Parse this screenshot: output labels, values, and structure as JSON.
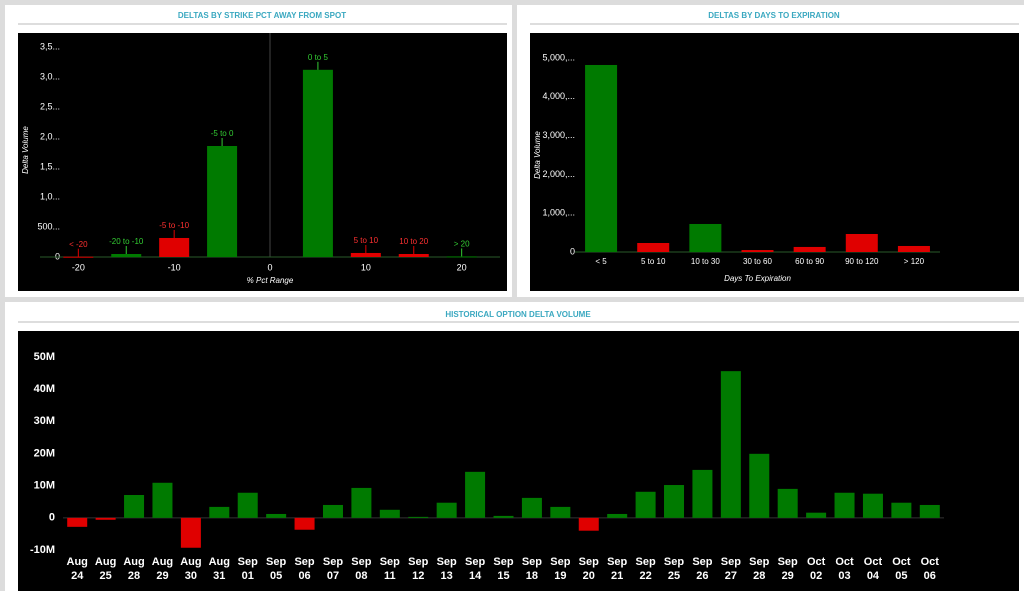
{
  "chart_data": [
    {
      "type": "bar",
      "title": "DELTAS BY STRIKE PCT AWAY FROM SPOT",
      "x_label": "% Pct Range",
      "y_label": "Delta Volume",
      "categories": [
        "< -20",
        "-20 to -10",
        "-5 to -10",
        "-5 to 0",
        "0 to 5",
        "5 to 10",
        "10 to 20",
        "> 20"
      ],
      "x": [
        -20,
        -15,
        -10,
        -5,
        5,
        10,
        15,
        20
      ],
      "values": [
        5000,
        50000,
        317000,
        1850000,
        3120000,
        67000,
        50000,
        10000
      ],
      "colors": [
        "#e00000",
        "#007a00",
        "#e00000",
        "#007a00",
        "#007a00",
        "#e00000",
        "#e00000",
        "#007a00"
      ],
      "xlim": [
        -24,
        24
      ],
      "xticks": [
        -20,
        -10,
        0,
        10,
        20
      ],
      "ylim": [
        0,
        3500000
      ],
      "yticks": [
        0,
        {
          "value": 500000,
          "label": "500..."
        },
        {
          "value": 1000000,
          "label": "1,0..."
        },
        {
          "value": 1500000,
          "label": "1,5..."
        },
        {
          "value": 2000000,
          "label": "2,0..."
        },
        {
          "value": 2500000,
          "label": "2,5..."
        },
        {
          "value": 3000000,
          "label": "3,0..."
        },
        {
          "value": 3500000,
          "label": "3,5..."
        }
      ]
    },
    {
      "type": "bar",
      "title": "DELTAS BY DAYS TO EXPIRATION",
      "x_label": "Days To Expiration",
      "y_label": "Delta Volume",
      "categories": [
        "< 5",
        "5 to 10",
        "10 to 30",
        "30 to 60",
        "60 to 90",
        "90 to 120",
        "> 120"
      ],
      "values": [
        4820000,
        232000,
        722000,
        50000,
        130000,
        464000,
        155000
      ],
      "colors": [
        "#007a00",
        "#e00000",
        "#007a00",
        "#e00000",
        "#e00000",
        "#e00000",
        "#e00000"
      ],
      "ylim": [
        0,
        5000000
      ],
      "yticks": [
        0,
        {
          "value": 1000000,
          "label": "1,000,..."
        },
        {
          "value": 2000000,
          "label": "2,000,..."
        },
        {
          "value": 3000000,
          "label": "3,000,..."
        },
        {
          "value": 4000000,
          "label": "4,000,..."
        },
        {
          "value": 5000000,
          "label": "5,000,..."
        }
      ]
    },
    {
      "type": "bar",
      "title": "HISTORICAL OPTION DELTA VOLUME",
      "categories": [
        "Aug 24",
        "Aug 25",
        "Aug 28",
        "Aug 29",
        "Aug 30",
        "Aug 31",
        "Sep 01",
        "Sep 05",
        "Sep 06",
        "Sep 07",
        "Sep 08",
        "Sep 11",
        "Sep 12",
        "Sep 13",
        "Sep 14",
        "Sep 15",
        "Sep 18",
        "Sep 19",
        "Sep 20",
        "Sep 21",
        "Sep 22",
        "Sep 25",
        "Sep 26",
        "Sep 27",
        "Sep 28",
        "Sep 29",
        "Oct 02",
        "Oct 03",
        "Oct 04",
        "Oct 05",
        "Oct 06"
      ],
      "values": [
        -2800000,
        -600000,
        7100000,
        10900000,
        -9300000,
        3400000,
        7800000,
        1200000,
        -3700000,
        4000000,
        9300000,
        2500000,
        300000,
        4700000,
        14300000,
        600000,
        6200000,
        3400000,
        -4000000,
        1200000,
        8100000,
        10200000,
        14900000,
        45600000,
        19900000,
        9000000,
        1600000,
        7800000,
        7500000,
        4700000,
        4000000
      ],
      "colors": [
        "#e00000",
        "#e00000",
        "#007a00",
        "#007a00",
        "#e00000",
        "#007a00",
        "#007a00",
        "#007a00",
        "#e00000",
        "#007a00",
        "#007a00",
        "#007a00",
        "#007a00",
        "#007a00",
        "#007a00",
        "#007a00",
        "#007a00",
        "#007a00",
        "#e00000",
        "#007a00",
        "#007a00",
        "#007a00",
        "#007a00",
        "#007a00",
        "#007a00",
        "#007a00",
        "#007a00",
        "#007a00",
        "#007a00",
        "#007a00",
        "#007a00"
      ],
      "ylim": [
        -10000000,
        50000000
      ],
      "yticks": [
        {
          "value": -10000000,
          "label": "-10M"
        },
        0,
        {
          "value": 10000000,
          "label": "10M"
        },
        {
          "value": 20000000,
          "label": "20M"
        },
        {
          "value": 30000000,
          "label": "30M"
        },
        {
          "value": 40000000,
          "label": "40M"
        },
        {
          "value": 50000000,
          "label": "50M"
        }
      ]
    }
  ]
}
